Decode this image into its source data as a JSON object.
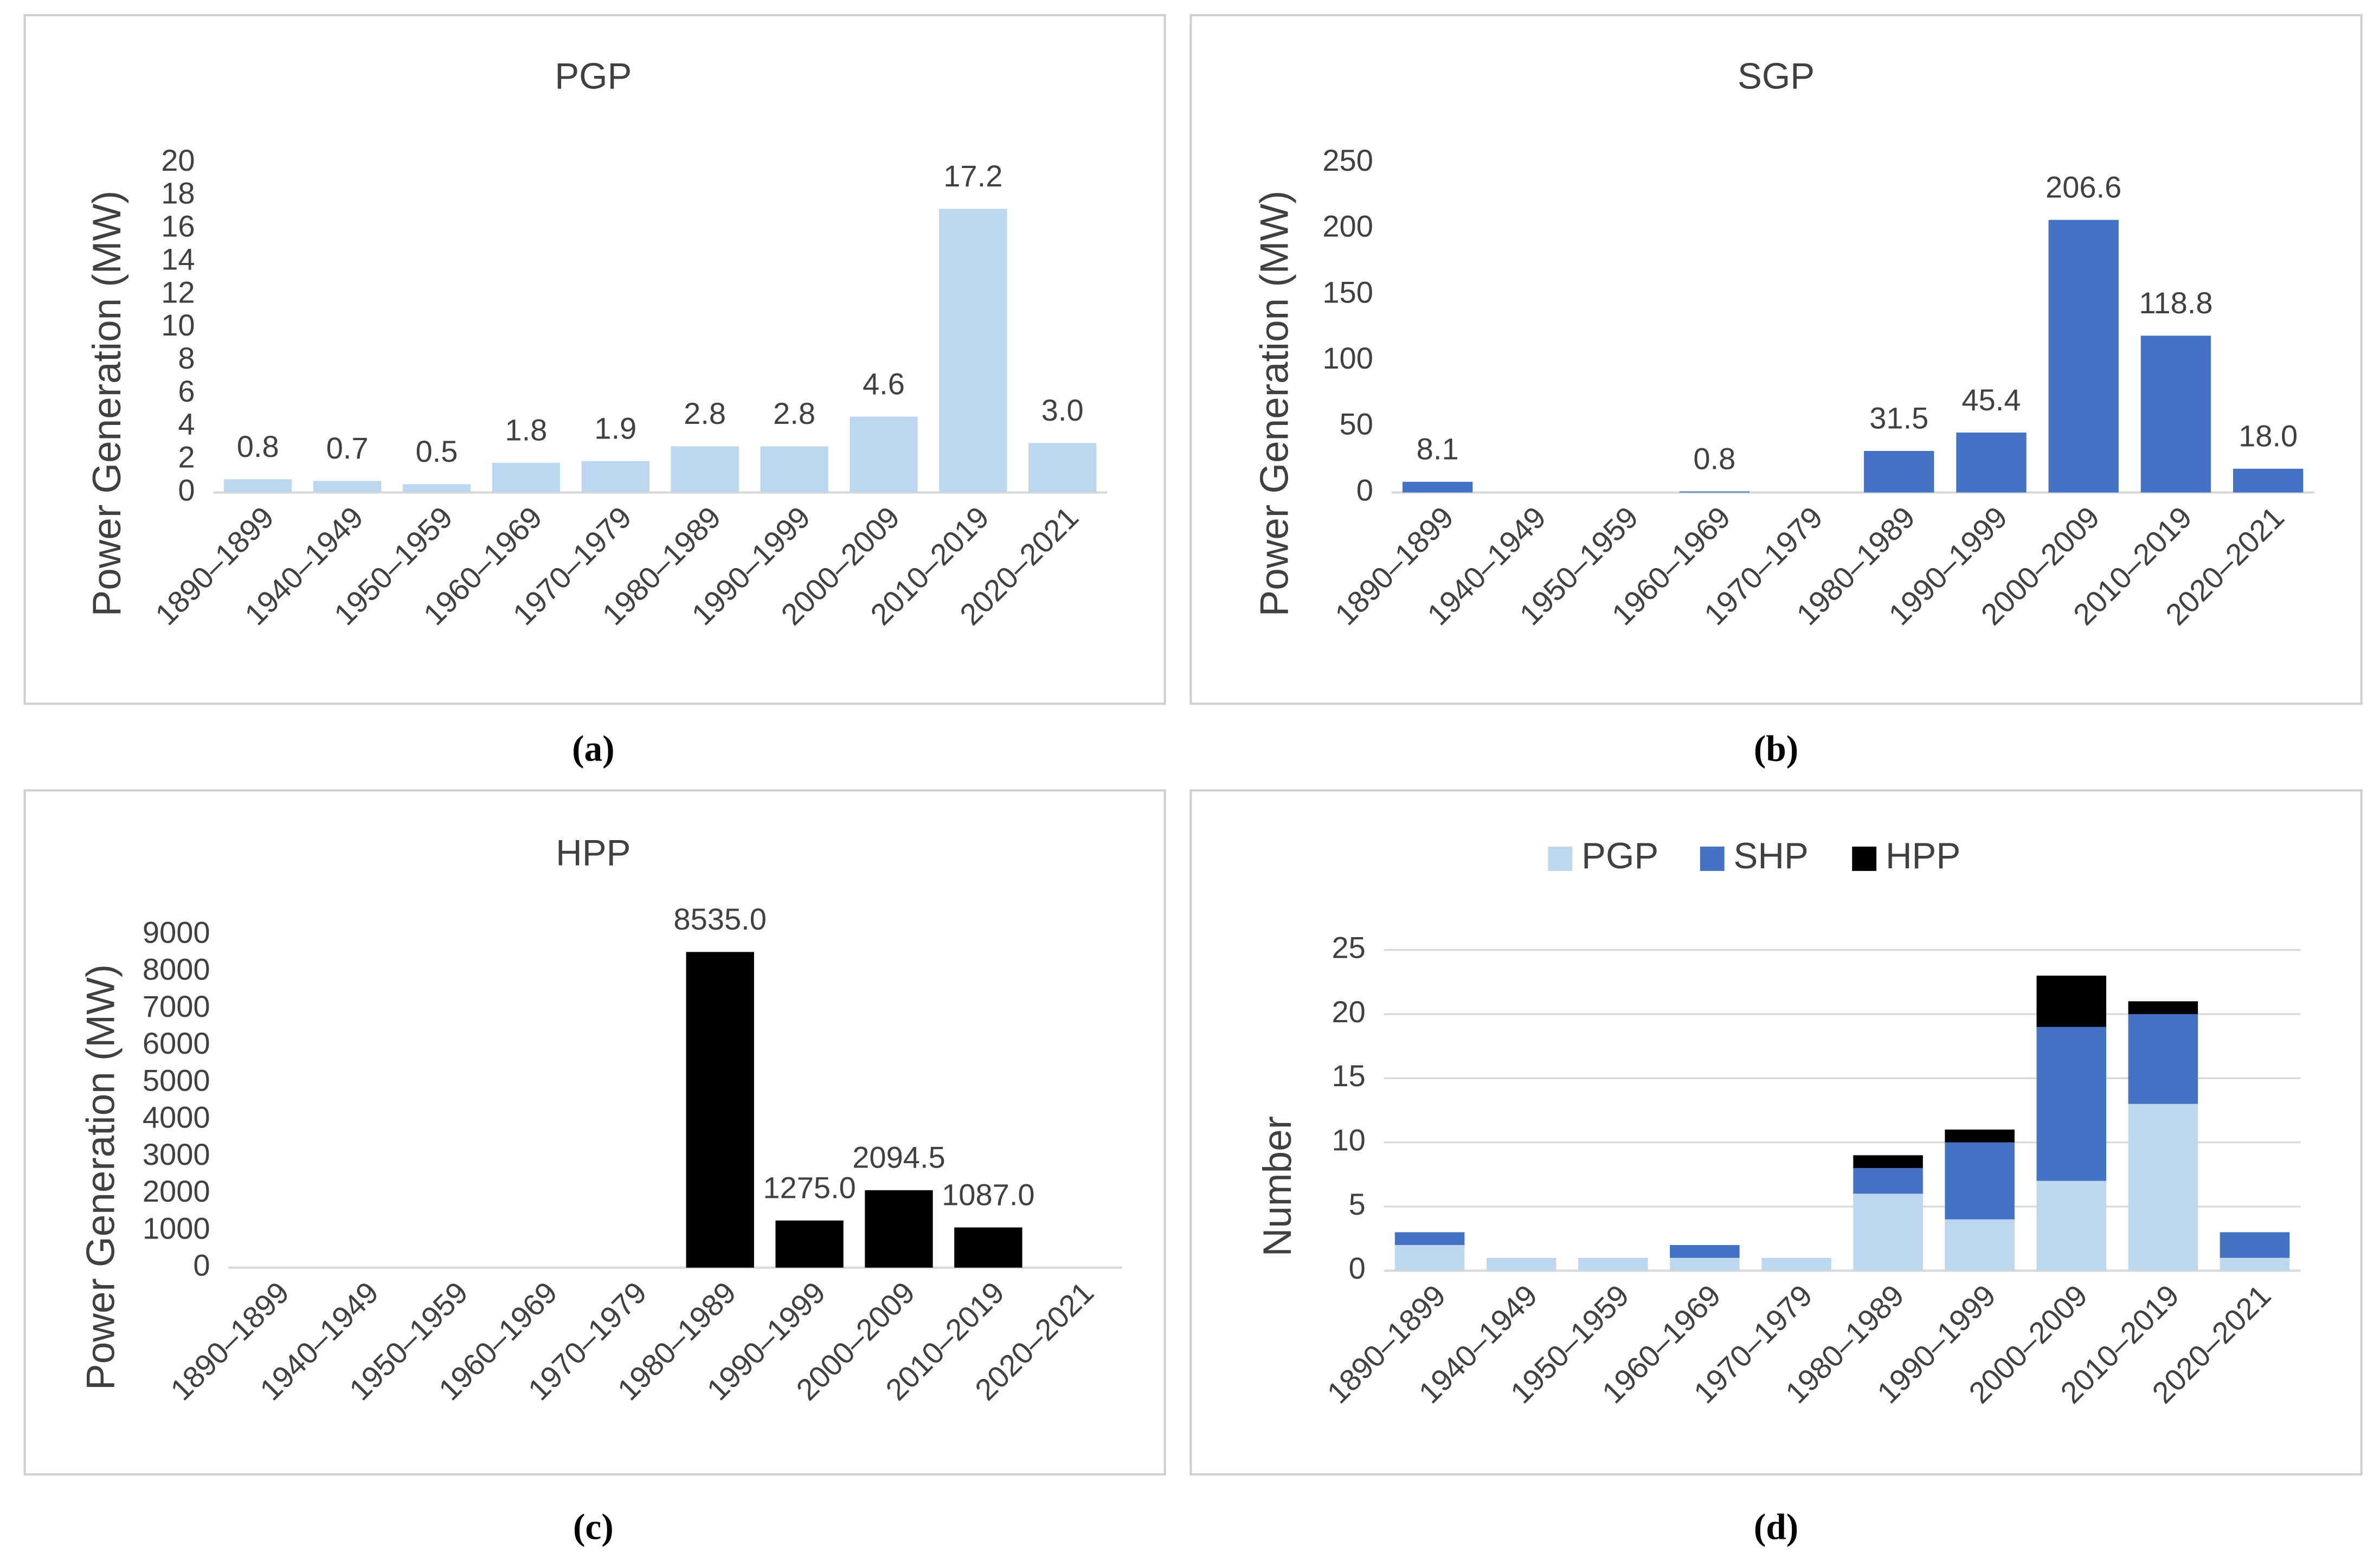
{
  "chart_data": [
    {
      "type": "bar",
      "title": "PGP",
      "caption": "(a)",
      "ylabel": "Power Generation (MW)",
      "categories": [
        "1890–1899",
        "1940–1949",
        "1950–1959",
        "1960–1969",
        "1970–1979",
        "1980–1989",
        "1990–1999",
        "2000–2009",
        "2010–2019",
        "2020–2021"
      ],
      "values": [
        0.8,
        0.7,
        0.5,
        1.8,
        1.9,
        2.8,
        2.8,
        4.6,
        17.2,
        3.0
      ],
      "value_labels": [
        "0.8",
        "0.7",
        "0.5",
        "1.8",
        "1.9",
        "2.8",
        "2.8",
        "4.6",
        "17.2",
        "3.0"
      ],
      "color": "#bdd7ee",
      "ylim": [
        0,
        20
      ],
      "yticks": [
        0,
        2,
        4,
        6,
        8,
        10,
        12,
        14,
        16,
        18,
        20
      ],
      "grid": false
    },
    {
      "type": "bar",
      "title": "SGP",
      "caption": "(b)",
      "ylabel": "Power Generation (MW)",
      "categories": [
        "1890–1899",
        "1940–1949",
        "1950–1959",
        "1960–1969",
        "1970–1979",
        "1980–1989",
        "1990–1999",
        "2000–2009",
        "2010–2019",
        "2020–2021"
      ],
      "values": [
        8.1,
        null,
        null,
        0.8,
        null,
        31.5,
        45.4,
        206.6,
        118.8,
        18.0
      ],
      "value_labels": [
        "8.1",
        null,
        null,
        "0.8",
        null,
        "31.5",
        "45.4",
        "206.6",
        "118.8",
        "18.0"
      ],
      "color": "#4472c4",
      "ylim": [
        0,
        250
      ],
      "yticks": [
        0,
        50,
        100,
        150,
        200,
        250
      ],
      "grid": false
    },
    {
      "type": "bar",
      "title": "HPP",
      "caption": "(c)",
      "ylabel": "Power Generation (MW)",
      "categories": [
        "1890–1899",
        "1940–1949",
        "1950–1959",
        "1960–1969",
        "1970–1979",
        "1980–1989",
        "1990–1999",
        "2000–2009",
        "2010–2019",
        "2020–2021"
      ],
      "values": [
        null,
        null,
        null,
        null,
        null,
        8535.0,
        1275.0,
        2094.5,
        1087.0,
        null
      ],
      "value_labels": [
        null,
        null,
        null,
        null,
        null,
        "8535.0",
        "1275.0",
        "2094.5",
        "1087.0",
        null
      ],
      "color": "#000000",
      "ylim": [
        0,
        9000
      ],
      "yticks": [
        0,
        1000,
        2000,
        3000,
        4000,
        5000,
        6000,
        7000,
        8000,
        9000
      ],
      "grid": false
    },
    {
      "type": "stacked-bar",
      "caption": "(d)",
      "ylabel": "Number",
      "categories": [
        "1890–1899",
        "1940–1949",
        "1950–1959",
        "1960–1969",
        "1970–1979",
        "1980–1989",
        "1990–1999",
        "2000–2009",
        "2010–2019",
        "2020–2021"
      ],
      "series": [
        {
          "name": "PGP",
          "color": "#bdd7ee",
          "values": [
            2,
            1,
            1,
            1,
            1,
            6,
            4,
            7,
            13,
            1
          ]
        },
        {
          "name": "SHP",
          "color": "#4472c4",
          "values": [
            1,
            0,
            0,
            1,
            0,
            2,
            6,
            12,
            7,
            2
          ]
        },
        {
          "name": "HPP",
          "color": "#000000",
          "values": [
            0,
            0,
            0,
            0,
            0,
            1,
            1,
            4,
            1,
            0
          ]
        }
      ],
      "ylim": [
        0,
        25
      ],
      "yticks": [
        0,
        5,
        10,
        15,
        20,
        25
      ],
      "grid": true,
      "legend": "top"
    }
  ]
}
